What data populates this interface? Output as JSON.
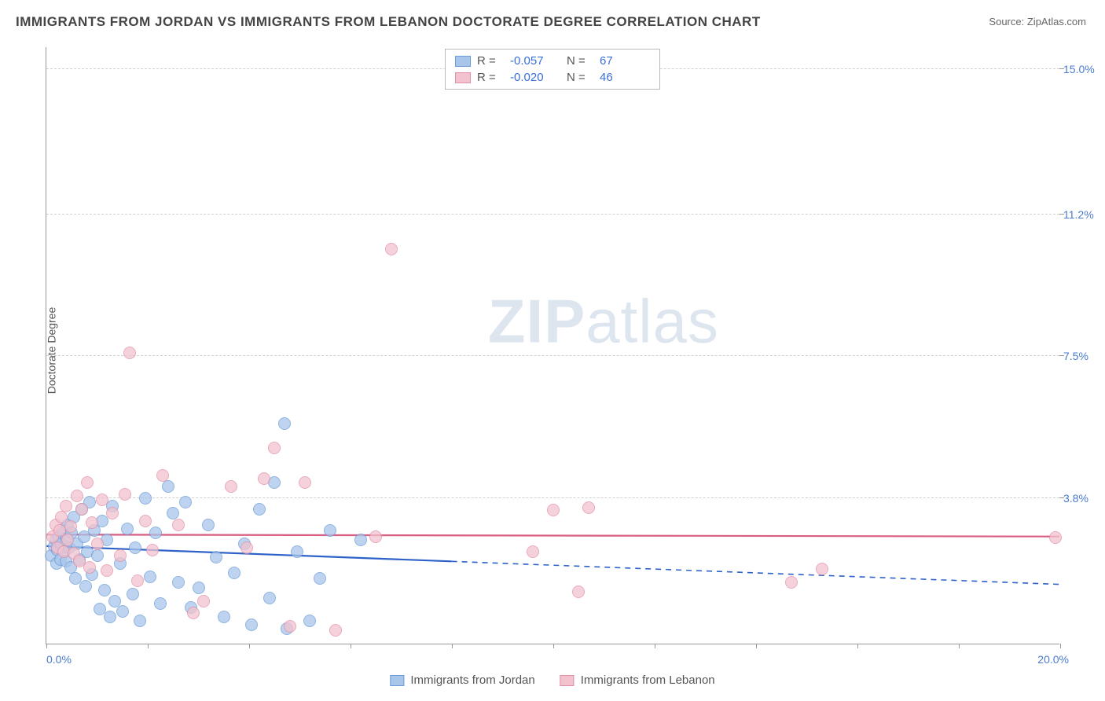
{
  "title": "IMMIGRANTS FROM JORDAN VS IMMIGRANTS FROM LEBANON DOCTORATE DEGREE CORRELATION CHART",
  "source_label": "Source:",
  "source_value": "ZipAtlas.com",
  "ylabel": "Doctorate Degree",
  "watermark": {
    "bold": "ZIP",
    "rest": "atlas"
  },
  "chart": {
    "type": "scatter-with-trend",
    "xlim": [
      0,
      20
    ],
    "ylim": [
      0,
      15.5916
    ],
    "x_axis": {
      "min_label": "0.0%",
      "max_label": "20.0%",
      "tick_positions_pct": [
        0,
        10,
        20,
        30,
        40,
        50,
        60,
        70,
        80,
        90,
        100
      ]
    },
    "y_axis": {
      "ticks": [
        {
          "value": 15.0,
          "label": "15.0%"
        },
        {
          "value": 11.2,
          "label": "11.2%"
        },
        {
          "value": 7.5,
          "label": "7.5%"
        },
        {
          "value": 3.8,
          "label": "3.8%"
        }
      ]
    },
    "grid_color": "#d0d0d0",
    "background_color": "#ffffff",
    "series": [
      {
        "name": "Immigrants from Jordan",
        "color_fill": "#a8c5ea",
        "color_stroke": "#6b9bd8",
        "trend_color": "#2e62c9",
        "R": "-0.057",
        "N": "67",
        "marker_radius": 8,
        "trend": {
          "solid_x_end": 8.0,
          "y_start": 2.55,
          "y_end_solid": 2.15,
          "y_end_dash": 1.55
        },
        "points": [
          [
            0.1,
            2.3
          ],
          [
            0.15,
            2.55
          ],
          [
            0.18,
            2.7
          ],
          [
            0.2,
            2.1
          ],
          [
            0.22,
            2.45
          ],
          [
            0.25,
            2.8
          ],
          [
            0.28,
            2.2
          ],
          [
            0.3,
            2.6
          ],
          [
            0.32,
            2.95
          ],
          [
            0.35,
            2.4
          ],
          [
            0.38,
            2.15
          ],
          [
            0.4,
            2.75
          ],
          [
            0.42,
            3.1
          ],
          [
            0.45,
            2.5
          ],
          [
            0.48,
            2.0
          ],
          [
            0.5,
            2.9
          ],
          [
            0.55,
            3.3
          ],
          [
            0.58,
            1.7
          ],
          [
            0.6,
            2.6
          ],
          [
            0.65,
            2.2
          ],
          [
            0.7,
            3.5
          ],
          [
            0.75,
            2.8
          ],
          [
            0.78,
            1.5
          ],
          [
            0.8,
            2.4
          ],
          [
            0.85,
            3.7
          ],
          [
            0.9,
            1.8
          ],
          [
            0.95,
            2.95
          ],
          [
            1.0,
            2.3
          ],
          [
            1.05,
            0.9
          ],
          [
            1.1,
            3.2
          ],
          [
            1.15,
            1.4
          ],
          [
            1.2,
            2.7
          ],
          [
            1.25,
            0.7
          ],
          [
            1.3,
            3.6
          ],
          [
            1.35,
            1.1
          ],
          [
            1.45,
            2.1
          ],
          [
            1.5,
            0.85
          ],
          [
            1.6,
            3.0
          ],
          [
            1.7,
            1.3
          ],
          [
            1.75,
            2.5
          ],
          [
            1.85,
            0.6
          ],
          [
            1.95,
            3.8
          ],
          [
            2.05,
            1.75
          ],
          [
            2.15,
            2.9
          ],
          [
            2.25,
            1.05
          ],
          [
            2.4,
            4.1
          ],
          [
            2.5,
            3.4
          ],
          [
            2.6,
            1.6
          ],
          [
            2.75,
            3.7
          ],
          [
            2.85,
            0.95
          ],
          [
            3.0,
            1.45
          ],
          [
            3.2,
            3.1
          ],
          [
            3.35,
            2.25
          ],
          [
            3.5,
            0.7
          ],
          [
            3.7,
            1.85
          ],
          [
            3.9,
            2.6
          ],
          [
            4.05,
            0.5
          ],
          [
            4.2,
            3.5
          ],
          [
            4.4,
            1.2
          ],
          [
            4.5,
            4.2
          ],
          [
            4.7,
            5.75
          ],
          [
            4.75,
            0.4
          ],
          [
            4.95,
            2.4
          ],
          [
            5.2,
            0.6
          ],
          [
            5.4,
            1.7
          ],
          [
            5.6,
            2.95
          ],
          [
            6.2,
            2.7
          ]
        ]
      },
      {
        "name": "Immigrants from Lebanon",
        "color_fill": "#f2c3cf",
        "color_stroke": "#e38fa5",
        "trend_color": "#d85e82",
        "R": "-0.020",
        "N": "46",
        "marker_radius": 8,
        "trend": {
          "solid_x_end": 20.0,
          "y_start": 2.85,
          "y_end_solid": 2.8,
          "y_end_dash": 2.8
        },
        "points": [
          [
            0.12,
            2.8
          ],
          [
            0.18,
            3.1
          ],
          [
            0.22,
            2.5
          ],
          [
            0.26,
            2.95
          ],
          [
            0.3,
            3.3
          ],
          [
            0.34,
            2.4
          ],
          [
            0.38,
            3.6
          ],
          [
            0.42,
            2.7
          ],
          [
            0.48,
            3.05
          ],
          [
            0.55,
            2.35
          ],
          [
            0.6,
            3.85
          ],
          [
            0.65,
            2.15
          ],
          [
            0.7,
            3.5
          ],
          [
            0.8,
            4.2
          ],
          [
            0.85,
            2.0
          ],
          [
            0.9,
            3.15
          ],
          [
            1.0,
            2.6
          ],
          [
            1.1,
            3.75
          ],
          [
            1.2,
            1.9
          ],
          [
            1.3,
            3.4
          ],
          [
            1.45,
            2.3
          ],
          [
            1.55,
            3.9
          ],
          [
            1.65,
            7.6
          ],
          [
            1.8,
            1.65
          ],
          [
            1.95,
            3.2
          ],
          [
            2.1,
            2.45
          ],
          [
            2.3,
            4.4
          ],
          [
            2.6,
            3.1
          ],
          [
            2.9,
            0.8
          ],
          [
            3.1,
            1.1
          ],
          [
            3.65,
            4.1
          ],
          [
            3.95,
            2.5
          ],
          [
            4.3,
            4.3
          ],
          [
            4.5,
            5.1
          ],
          [
            4.8,
            0.45
          ],
          [
            5.1,
            4.2
          ],
          [
            5.7,
            0.35
          ],
          [
            6.5,
            2.8
          ],
          [
            6.8,
            10.3
          ],
          [
            9.6,
            2.4
          ],
          [
            10.0,
            3.48
          ],
          [
            10.5,
            1.35
          ],
          [
            10.7,
            3.55
          ],
          [
            14.7,
            1.6
          ],
          [
            15.3,
            1.95
          ],
          [
            19.9,
            2.78
          ]
        ]
      }
    ]
  },
  "legend_top": {
    "R_label": "R  =",
    "N_label": "N  ="
  },
  "legend_bottom": [
    {
      "swatch_fill": "#a8c5ea",
      "swatch_stroke": "#6b9bd8",
      "label": "Immigrants from Jordan"
    },
    {
      "swatch_fill": "#f2c3cf",
      "swatch_stroke": "#e38fa5",
      "label": "Immigrants from Lebanon"
    }
  ]
}
